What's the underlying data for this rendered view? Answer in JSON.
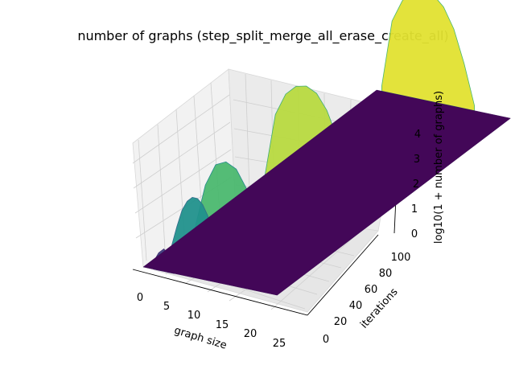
{
  "chart_data": {
    "type": "surface3d",
    "title": "number of graphs (step_split_merge_all_erase_create_all)",
    "xlabel": "graph size",
    "ylabel": "iterations",
    "zlabel": "log10(1 + number of graphs)",
    "x_ticks": [
      "0",
      "5",
      "10",
      "15",
      "20",
      "25"
    ],
    "y_ticks": [
      "0",
      "20",
      "40",
      "60",
      "80",
      "100"
    ],
    "z_ticks": [
      "0",
      "1",
      "2",
      "3",
      "4"
    ],
    "xlim": [
      -1,
      27
    ],
    "ylim": [
      -5,
      105
    ],
    "zlim": [
      0,
      4.6
    ],
    "colormap": "viridis",
    "grid": true,
    "series": [
      {
        "iteration": 0,
        "x": [
          2,
          3,
          4,
          5,
          6
        ],
        "values": [
          0.3,
          0.7,
          0.9,
          0.7,
          0.3
        ]
      },
      {
        "iteration": 10,
        "x": [
          1,
          2,
          3,
          4,
          5,
          6,
          7,
          8,
          9,
          10
        ],
        "values": [
          0.2,
          1.0,
          1.7,
          2.1,
          2.3,
          2.3,
          2.1,
          1.7,
          1.0,
          0.2
        ]
      },
      {
        "iteration": 20,
        "x": [
          1,
          3,
          5,
          7,
          9,
          11,
          13,
          14
        ],
        "values": [
          0.2,
          2.0,
          2.9,
          3.1,
          2.9,
          2.2,
          1.1,
          0.2
        ]
      },
      {
        "iteration": 50,
        "x": [
          1,
          3,
          5,
          7,
          9,
          11,
          13,
          15,
          17,
          18
        ],
        "values": [
          0.2,
          2.7,
          3.6,
          4.0,
          4.1,
          3.9,
          3.3,
          2.3,
          1.0,
          0.2
        ]
      },
      {
        "iteration": 100,
        "x": [
          1,
          3,
          5,
          7,
          9,
          11,
          13,
          15,
          17,
          19
        ],
        "values": [
          0.2,
          2.9,
          3.8,
          4.3,
          4.4,
          4.3,
          3.9,
          3.1,
          1.8,
          0.2
        ]
      }
    ]
  }
}
